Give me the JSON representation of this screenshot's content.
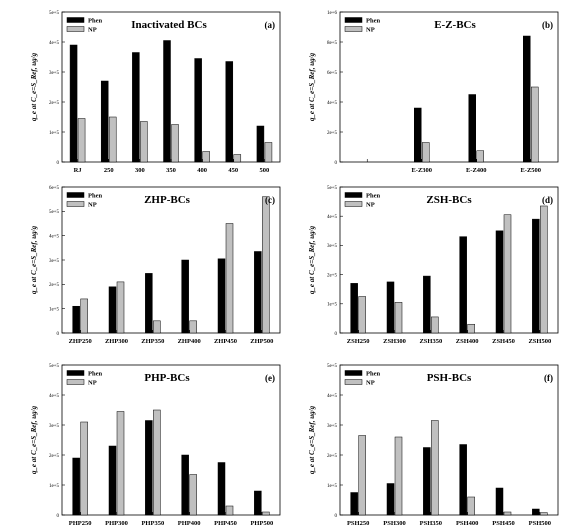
{
  "chart_data": [
    {
      "type": "bar",
      "title": "Inactivated BCs",
      "panel_label": "(a)",
      "ylabel": "q_e at C_e=S_Ref, ug/g",
      "ylim": [
        0,
        50000
      ],
      "yticks": [
        "0",
        "1e+5",
        "2e+5",
        "3e+5",
        "4e+5",
        "5e+5"
      ],
      "categories": [
        "RJ",
        "250",
        "300",
        "350",
        "400",
        "450",
        "500"
      ],
      "legend_position": "top-left",
      "series": [
        {
          "name": "Phen",
          "color": "#000000",
          "values": [
            39000,
            27000,
            36500,
            40500,
            34500,
            33500,
            12000
          ]
        },
        {
          "name": "NP",
          "color": "#c0c0c0",
          "values": [
            14500,
            15000,
            13500,
            12500,
            3500,
            2500,
            6500
          ]
        }
      ]
    },
    {
      "type": "bar",
      "title": "E-Z-BCs",
      "panel_label": "(b)",
      "ylabel": "q_e at C_e=S_Ref, ug/g",
      "ylim": [
        0,
        100000
      ],
      "yticks": [
        "0",
        "2e+5",
        "4e+5",
        "6e+5",
        "8e+5",
        "1e+6"
      ],
      "categories": [
        "",
        "E-Z300",
        "E-Z400",
        "E-Z500"
      ],
      "legend_position": "top-left",
      "series": [
        {
          "name": "Phen",
          "color": "#000000",
          "values": [
            0,
            36000,
            45000,
            84000
          ]
        },
        {
          "name": "NP",
          "color": "#c0c0c0",
          "values": [
            0,
            13000,
            7500,
            50000
          ]
        }
      ]
    },
    {
      "type": "bar",
      "title": "ZHP-BCs",
      "panel_label": "(c)",
      "ylabel": "q_e at C_e=S_Ref, ug/g",
      "ylim": [
        0,
        60000
      ],
      "yticks": [
        "0",
        "1e+5",
        "2e+5",
        "3e+5",
        "4e+5",
        "5e+5",
        "6e+5"
      ],
      "categories": [
        "ZHP250",
        "ZHP300",
        "ZHP350",
        "ZHP400",
        "ZHP450",
        "ZHP500"
      ],
      "legend_position": "top-left",
      "series": [
        {
          "name": "Phen",
          "color": "#000000",
          "values": [
            11000,
            19000,
            24500,
            30000,
            30500,
            33500
          ]
        },
        {
          "name": "NP",
          "color": "#c0c0c0",
          "values": [
            14000,
            21000,
            5000,
            5000,
            45000,
            56000
          ]
        }
      ]
    },
    {
      "type": "bar",
      "title": "ZSH-BCs",
      "panel_label": "(d)",
      "ylabel": "q_e at C_e=S_Ref, ug/g",
      "ylim": [
        0,
        50000
      ],
      "yticks": [
        "0",
        "1e+5",
        "2e+5",
        "3e+5",
        "4e+5",
        "5e+5"
      ],
      "categories": [
        "ZSH250",
        "ZSH300",
        "ZSH350",
        "ZSH400",
        "ZSH450",
        "ZSH500"
      ],
      "legend_position": "top-left",
      "series": [
        {
          "name": "Phen",
          "color": "#000000",
          "values": [
            17000,
            17500,
            19500,
            33000,
            35000,
            39000
          ]
        },
        {
          "name": "NP",
          "color": "#c0c0c0",
          "values": [
            12500,
            10500,
            5500,
            3000,
            40500,
            43500
          ]
        }
      ]
    },
    {
      "type": "bar",
      "title": "PHP-BCs",
      "panel_label": "(e)",
      "ylabel": "q_e at C_e=S_Ref, ug/g",
      "ylim": [
        0,
        50000
      ],
      "yticks": [
        "0",
        "1e+5",
        "2e+5",
        "3e+5",
        "4e+5",
        "5e+5"
      ],
      "categories": [
        "PHP250",
        "PHP300",
        "PHP350",
        "PHP400",
        "PHP450",
        "PHP500"
      ],
      "legend_position": "top-left",
      "series": [
        {
          "name": "Phen",
          "color": "#000000",
          "values": [
            19000,
            23000,
            31500,
            20000,
            17500,
            8000
          ]
        },
        {
          "name": "NP",
          "color": "#c0c0c0",
          "values": [
            31000,
            34500,
            35000,
            13500,
            3000,
            1000
          ]
        }
      ]
    },
    {
      "type": "bar",
      "title": "PSH-BCs",
      "panel_label": "(f)",
      "ylabel": "q_e at C_e=S_Ref, ug/g",
      "ylim": [
        0,
        50000
      ],
      "yticks": [
        "0",
        "1e+5",
        "2e+5",
        "3e+5",
        "4e+5",
        "5e+5"
      ],
      "categories": [
        "PSH250",
        "PSH300",
        "PSH350",
        "PSH400",
        "PSH450",
        "PSH500"
      ],
      "legend_position": "top-left",
      "series": [
        {
          "name": "Phen",
          "color": "#000000",
          "values": [
            7500,
            10500,
            22500,
            23500,
            9000,
            2000
          ]
        },
        {
          "name": "NP",
          "color": "#c0c0c0",
          "values": [
            26500,
            26000,
            31500,
            6000,
            1000,
            800
          ]
        }
      ]
    }
  ]
}
